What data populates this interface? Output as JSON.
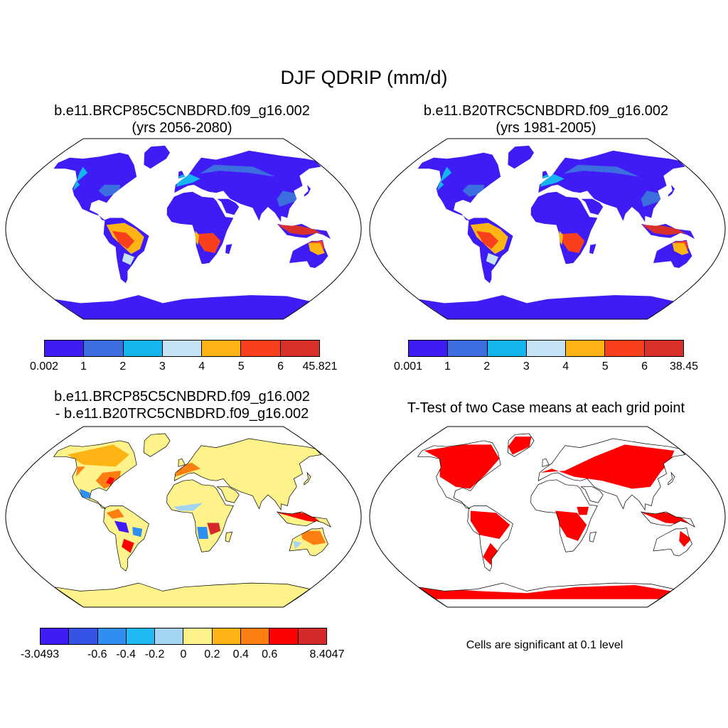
{
  "title": "DJF QDRIP (mm/d)",
  "panels": [
    {
      "id": "case",
      "title_line1": "b.e11.BRCP85C5CNBDRD.f09_g16.002",
      "title_line2": "(yrs 2056-2080)",
      "colorbar": {
        "colors": [
          "#3f1cf5",
          "#3c6ee0",
          "#14b5ef",
          "#c6e3f5",
          "#fdb414",
          "#f8401c",
          "#d8302a"
        ],
        "labels": [
          "0.002",
          "1",
          "2",
          "3",
          "4",
          "5",
          "6",
          "45.821"
        ]
      }
    },
    {
      "id": "control",
      "title_line1": "b.e11.B20TRC5CNBDRD.f09_g16.002",
      "title_line2": "(yrs 1981-2005)",
      "colorbar": {
        "colors": [
          "#3f1cf5",
          "#3c6ee0",
          "#14b5ef",
          "#c6e3f5",
          "#fdb414",
          "#f8401c",
          "#d8302a"
        ],
        "labels": [
          "0.001",
          "1",
          "2",
          "3",
          "4",
          "5",
          "6",
          "38.45"
        ]
      }
    },
    {
      "id": "difference",
      "title_line1": "b.e11.BRCP85C5CNBDRD.f09_g16.002",
      "title_line2": "- b.e11.B20TRC5CNBDRD.f09_g16.002",
      "colorbar": {
        "colors": [
          "#3f1cf5",
          "#3553e4",
          "#2e8ff0",
          "#1fb9f3",
          "#a4d4f3",
          "#fdf38a",
          "#fdb414",
          "#fd7e11",
          "#fd0000",
          "#d42a2c"
        ],
        "labels": [
          "-3.0493",
          "",
          "-0.6",
          "-0.4",
          "-0.2",
          "0",
          "0.2",
          "0.4",
          "0.6",
          "",
          "8.4047"
        ]
      }
    },
    {
      "id": "ttest",
      "title_line1": "T-Test of two Case means at each grid point",
      "note": "Cells are significant at 0.1 level",
      "significant_color": "#ff0000"
    }
  ]
}
